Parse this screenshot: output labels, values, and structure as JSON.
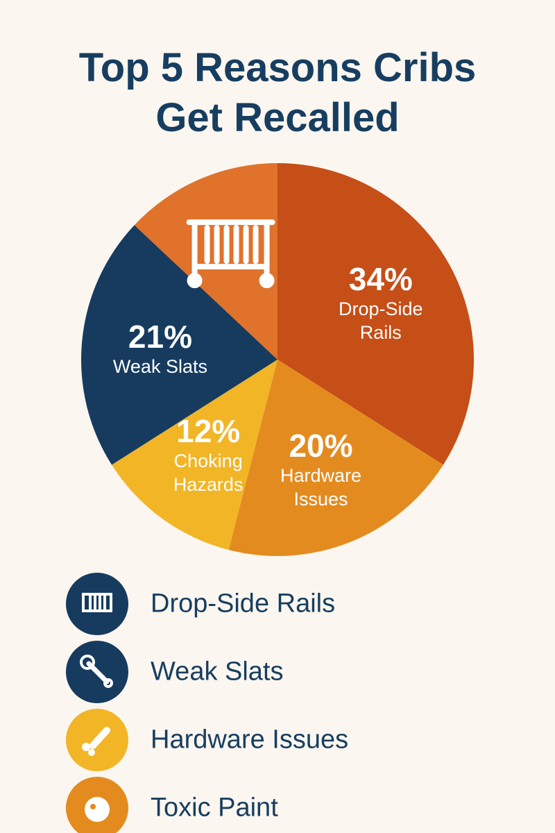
{
  "chart_data": {
    "type": "pie",
    "title": "Top 5 Reasons Cribs Get Recalled",
    "categories": [
      "Drop-Side Rails",
      "Hardware Issues",
      "Choking Hazards",
      "Weak Slats",
      null
    ],
    "values": [
      34,
      20,
      12,
      21,
      13
    ],
    "value_labels": [
      "34%",
      "20%",
      "12%",
      "21%",
      null
    ],
    "colors": [
      "#c64e17",
      "#e48b1f",
      "#f2b526",
      "#163b5e",
      "#e0722b"
    ]
  },
  "legend": [
    {
      "name": "Drop-Side Rails",
      "color": "#163b5e"
    },
    {
      "name": "Weak Slats",
      "color": "#163b5e"
    },
    {
      "name": "Hardware Issues",
      "color": "#f2b526"
    },
    {
      "name": "Toxic Paint",
      "color": "#e48b1f"
    }
  ]
}
